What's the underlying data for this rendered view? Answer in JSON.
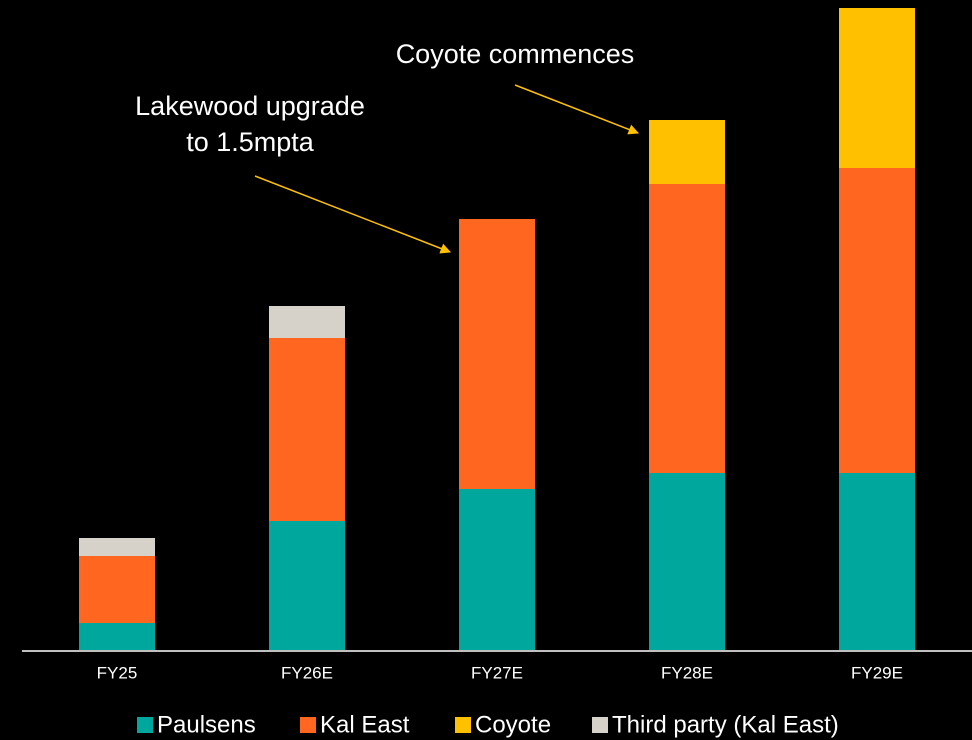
{
  "chart_data": {
    "type": "stacked_bar",
    "categories": [
      "FY25",
      "FY26E",
      "FY27E",
      "FY28E",
      "FY29E"
    ],
    "series": [
      {
        "name": "Paulsens",
        "color": "#00a79d",
        "values": [
          0.27,
          1.29,
          1.61,
          1.77,
          1.77
        ]
      },
      {
        "name": "Kal East",
        "color": "#ff6720",
        "values": [
          0.67,
          1.83,
          2.7,
          2.89,
          3.05
        ]
      },
      {
        "name": "Coyote",
        "color": "#ffc000",
        "values": [
          null,
          null,
          null,
          0.64,
          1.6
        ]
      },
      {
        "name": "Third party (Kal East)",
        "color": "#d6d2ca",
        "values": [
          0.18,
          0.32,
          null,
          null,
          null
        ]
      }
    ],
    "annotations": [
      {
        "lines": [
          "Lakewood upgrade",
          "to 1.5mpta"
        ]
      },
      {
        "lines": [
          "Coyote commences"
        ]
      }
    ]
  }
}
